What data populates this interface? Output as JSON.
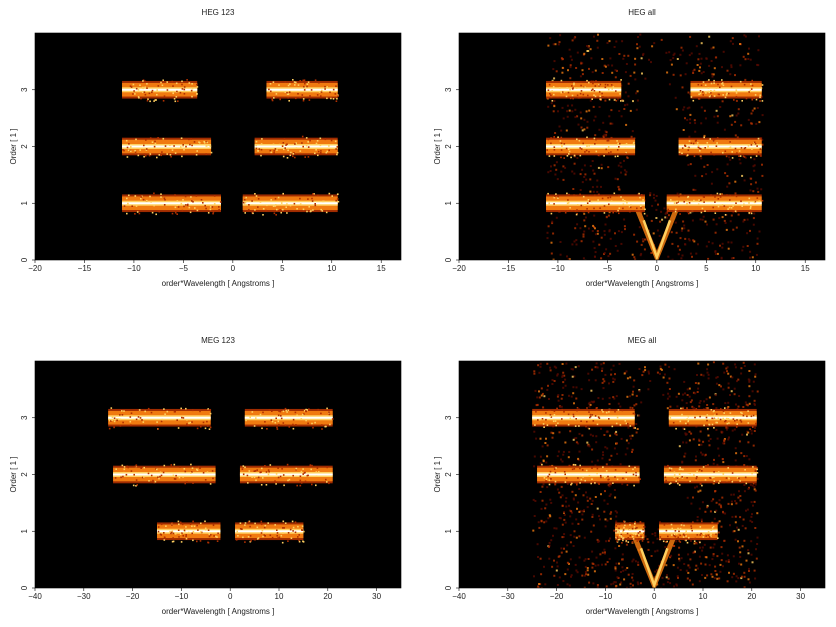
{
  "chart_data": [
    {
      "type": "heatmap",
      "title": "HEG 123",
      "xlabel": "order*Wavelength [ Angstroms ]",
      "ylabel": "Order [ 1 ]",
      "xlim": [
        -20,
        17
      ],
      "ylim": [
        0,
        4
      ],
      "xticks": [
        "−20",
        "−15",
        "−10",
        "−5",
        "0",
        "5",
        "10",
        "15"
      ],
      "yticks": [
        "0",
        "1",
        "2",
        "3"
      ],
      "colormap": [
        "#000000",
        "#5a0a00",
        "#b03000",
        "#f07a10",
        "#ffd060",
        "#ffffff"
      ],
      "background": "#000000",
      "grid": false,
      "stripes": [
        {
          "order": 1,
          "x_start": -11.2,
          "x_end": -1.2
        },
        {
          "order": 1,
          "x_start": 1.0,
          "x_end": 10.6
        },
        {
          "order": 2,
          "x_start": -11.2,
          "x_end": -2.2
        },
        {
          "order": 2,
          "x_start": 2.2,
          "x_end": 10.6
        },
        {
          "order": 3,
          "x_start": -11.2,
          "x_end": -3.6
        },
        {
          "order": 3,
          "x_start": 3.4,
          "x_end": 10.6
        }
      ]
    },
    {
      "type": "heatmap",
      "title": "HEG all",
      "xlabel": "order*Wavelength [ Angstroms ]",
      "ylabel": "Order [ 1 ]",
      "xlim": [
        -20,
        17
      ],
      "ylim": [
        0,
        4
      ],
      "xticks": [
        "−20",
        "−15",
        "−10",
        "−5",
        "0",
        "5",
        "10",
        "15"
      ],
      "yticks": [
        "0",
        "1",
        "2",
        "3"
      ],
      "colormap": [
        "#000000",
        "#5a0a00",
        "#b03000",
        "#f07a10",
        "#ffd060",
        "#ffffff"
      ],
      "background": "#000000",
      "grid": false,
      "stripes": [
        {
          "order": 1,
          "x_start": -11.2,
          "x_end": -1.2
        },
        {
          "order": 1,
          "x_start": 1.0,
          "x_end": 10.6
        },
        {
          "order": 2,
          "x_start": -11.2,
          "x_end": -2.2
        },
        {
          "order": 2,
          "x_start": 2.2,
          "x_end": 10.6
        },
        {
          "order": 3,
          "x_start": -11.2,
          "x_end": -3.6
        },
        {
          "order": 3,
          "x_start": 3.4,
          "x_end": 10.6
        }
      ]
    },
    {
      "type": "heatmap",
      "title": "MEG 123",
      "xlabel": "order*Wavelength [ Angstroms ]",
      "ylabel": "Order [ 1 ]",
      "xlim": [
        -40,
        35
      ],
      "ylim": [
        0,
        4
      ],
      "xticks": [
        "−40",
        "−30",
        "−20",
        "−10",
        "0",
        "10",
        "20",
        "30"
      ],
      "yticks": [
        "0",
        "1",
        "2",
        "3"
      ],
      "colormap": [
        "#000000",
        "#5a0a00",
        "#b03000",
        "#f07a10",
        "#ffd060",
        "#ffffff"
      ],
      "background": "#000000",
      "grid": false,
      "stripes": [
        {
          "order": 1,
          "x_start": -15.0,
          "x_end": -2.0
        },
        {
          "order": 1,
          "x_start": 1.0,
          "x_end": 15.0
        },
        {
          "order": 2,
          "x_start": -24.0,
          "x_end": -3.0
        },
        {
          "order": 2,
          "x_start": 2.0,
          "x_end": 21.0
        },
        {
          "order": 3,
          "x_start": -25.0,
          "x_end": -4.0
        },
        {
          "order": 3,
          "x_start": 3.0,
          "x_end": 21.0
        }
      ]
    },
    {
      "type": "heatmap",
      "title": "MEG all",
      "xlabel": "order*Wavelength [ Angstroms ]",
      "ylabel": "Order [ 1 ]",
      "xlim": [
        -40,
        35
      ],
      "ylim": [
        0,
        4
      ],
      "xticks": [
        "−40",
        "−30",
        "−20",
        "−10",
        "0",
        "10",
        "20",
        "30"
      ],
      "yticks": [
        "0",
        "1",
        "2",
        "3"
      ],
      "colormap": [
        "#000000",
        "#5a0a00",
        "#b03000",
        "#f07a10",
        "#ffd060",
        "#ffffff"
      ],
      "background": "#000000",
      "grid": false,
      "stripes": [
        {
          "order": 1,
          "x_start": -8.0,
          "x_end": -2.0
        },
        {
          "order": 1,
          "x_start": 1.0,
          "x_end": 13.0
        },
        {
          "order": 2,
          "x_start": -24.0,
          "x_end": -3.0
        },
        {
          "order": 2,
          "x_start": 2.0,
          "x_end": 21.0
        },
        {
          "order": 3,
          "x_start": -25.0,
          "x_end": -4.0
        },
        {
          "order": 3,
          "x_start": 3.0,
          "x_end": 21.0
        }
      ]
    }
  ]
}
